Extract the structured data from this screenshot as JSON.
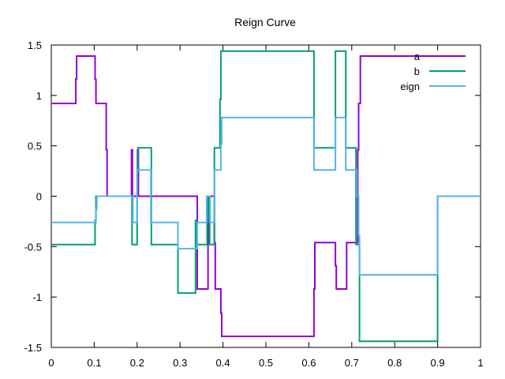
{
  "chart_data": {
    "type": "line",
    "title": "Reign Curve",
    "xlabel": "",
    "ylabel": "",
    "xlim": [
      0,
      1
    ],
    "ylim": [
      -1.5,
      1.5
    ],
    "x_ticks": [
      0,
      0.1,
      0.2,
      0.3,
      0.4,
      0.5,
      0.6,
      0.7,
      0.8,
      0.9,
      1
    ],
    "x_tick_labels": [
      "0",
      "0.1",
      "0.2",
      "0.3",
      "0.4",
      "0.5",
      "0.6",
      "0.7",
      "0.8",
      "0.9",
      "1"
    ],
    "y_ticks": [
      -1.5,
      -1,
      -0.5,
      0,
      0.5,
      1,
      1.5
    ],
    "y_tick_labels": [
      "-1.5",
      "-1",
      "-0.5",
      "0",
      "0.5",
      "1",
      "1.5"
    ],
    "grid": false,
    "legend_position": "top-right",
    "series": [
      {
        "name": "a",
        "color": "#9400d3",
        "points": [
          [
            0,
            0.92
          ],
          [
            0.057,
            0.92
          ],
          [
            0.057,
            1.16
          ],
          [
            0.059,
            1.16
          ],
          [
            0.059,
            1.39
          ],
          [
            0.102,
            1.39
          ],
          [
            0.102,
            1.16
          ],
          [
            0.104,
            1.16
          ],
          [
            0.104,
            0.92
          ],
          [
            0.128,
            0.92
          ],
          [
            0.128,
            0.46
          ],
          [
            0.13,
            0.46
          ],
          [
            0.13,
            0
          ],
          [
            0.187,
            0
          ],
          [
            0.187,
            0.46
          ],
          [
            0.189,
            0.46
          ],
          [
            0.189,
            0
          ],
          [
            0.201,
            0
          ],
          [
            0.201,
            0.46
          ],
          [
            0.203,
            0.46
          ],
          [
            0.203,
            0
          ],
          [
            0.34,
            0
          ],
          [
            0.34,
            -0.92
          ],
          [
            0.365,
            -0.92
          ],
          [
            0.365,
            -0.46
          ],
          [
            0.366,
            -0.46
          ],
          [
            0.366,
            0
          ],
          [
            0.38,
            0
          ],
          [
            0.38,
            -0.46
          ],
          [
            0.382,
            -0.46
          ],
          [
            0.382,
            -0.92
          ],
          [
            0.395,
            -0.92
          ],
          [
            0.395,
            -1.16
          ],
          [
            0.397,
            -1.16
          ],
          [
            0.397,
            -1.39
          ],
          [
            0.612,
            -1.39
          ],
          [
            0.612,
            -0.92
          ],
          [
            0.614,
            -0.92
          ],
          [
            0.614,
            -0.46
          ],
          [
            0.662,
            -0.46
          ],
          [
            0.662,
            -0.69
          ],
          [
            0.664,
            -0.69
          ],
          [
            0.664,
            -0.92
          ],
          [
            0.688,
            -0.92
          ],
          [
            0.688,
            -0.46
          ],
          [
            0.714,
            -0.46
          ],
          [
            0.714,
            0.46
          ],
          [
            0.716,
            0.46
          ],
          [
            0.716,
            0.92
          ],
          [
            0.72,
            0.92
          ],
          [
            0.72,
            1.39
          ],
          [
            0.965,
            1.39
          ]
        ]
      },
      {
        "name": "b",
        "color": "#009e73",
        "points": [
          [
            0,
            -0.48
          ],
          [
            0.102,
            -0.48
          ],
          [
            0.102,
            -0.24
          ],
          [
            0.104,
            -0.24
          ],
          [
            0.104,
            0
          ],
          [
            0.188,
            0
          ],
          [
            0.188,
            -0.48
          ],
          [
            0.2,
            -0.48
          ],
          [
            0.2,
            0.24
          ],
          [
            0.202,
            0.24
          ],
          [
            0.202,
            0.48
          ],
          [
            0.233,
            0.48
          ],
          [
            0.233,
            -0.48
          ],
          [
            0.295,
            -0.48
          ],
          [
            0.295,
            -0.96
          ],
          [
            0.336,
            -0.96
          ],
          [
            0.336,
            -0.24
          ],
          [
            0.338,
            -0.24
          ],
          [
            0.338,
            -0.48
          ],
          [
            0.363,
            -0.48
          ],
          [
            0.363,
            -0.24
          ],
          [
            0.365,
            -0.24
          ],
          [
            0.365,
            0
          ],
          [
            0.367,
            0
          ],
          [
            0.367,
            -0.24
          ],
          [
            0.369,
            -0.24
          ],
          [
            0.369,
            -0.48
          ],
          [
            0.38,
            -0.48
          ],
          [
            0.38,
            0.48
          ],
          [
            0.393,
            0.48
          ],
          [
            0.393,
            0.96
          ],
          [
            0.395,
            0.96
          ],
          [
            0.395,
            1.44
          ],
          [
            0.612,
            1.44
          ],
          [
            0.612,
            0.48
          ],
          [
            0.662,
            0.48
          ],
          [
            0.662,
            1.44
          ],
          [
            0.686,
            1.44
          ],
          [
            0.686,
            0.48
          ],
          [
            0.71,
            0.48
          ],
          [
            0.71,
            -0.48
          ],
          [
            0.718,
            -0.48
          ],
          [
            0.718,
            -1.44
          ],
          [
            0.9,
            -1.44
          ],
          [
            0.9,
            0
          ]
        ]
      },
      {
        "name": "eign",
        "color": "#56b4e9",
        "points": [
          [
            0,
            -0.26
          ],
          [
            0.104,
            -0.26
          ],
          [
            0.104,
            -0.13
          ],
          [
            0.106,
            -0.13
          ],
          [
            0.106,
            0
          ],
          [
            0.19,
            0
          ],
          [
            0.19,
            -0.26
          ],
          [
            0.2,
            -0.26
          ],
          [
            0.2,
            0.26
          ],
          [
            0.232,
            0.26
          ],
          [
            0.232,
            -0.26
          ],
          [
            0.295,
            -0.26
          ],
          [
            0.295,
            -0.52
          ],
          [
            0.34,
            -0.52
          ],
          [
            0.34,
            -0.26
          ],
          [
            0.362,
            -0.26
          ],
          [
            0.362,
            0
          ],
          [
            0.37,
            0
          ],
          [
            0.37,
            -0.26
          ],
          [
            0.38,
            -0.26
          ],
          [
            0.38,
            0.26
          ],
          [
            0.395,
            0.26
          ],
          [
            0.395,
            0.52
          ],
          [
            0.397,
            0.52
          ],
          [
            0.397,
            0.78
          ],
          [
            0.612,
            0.78
          ],
          [
            0.612,
            0.26
          ],
          [
            0.662,
            0.26
          ],
          [
            0.662,
            0.78
          ],
          [
            0.686,
            0.78
          ],
          [
            0.686,
            0.26
          ],
          [
            0.712,
            0.26
          ],
          [
            0.712,
            0
          ],
          [
            0.716,
            0
          ],
          [
            0.716,
            -0.39
          ],
          [
            0.718,
            -0.39
          ],
          [
            0.718,
            -0.78
          ],
          [
            0.9,
            -0.78
          ],
          [
            0.9,
            0
          ],
          [
            1,
            0
          ]
        ]
      }
    ]
  }
}
